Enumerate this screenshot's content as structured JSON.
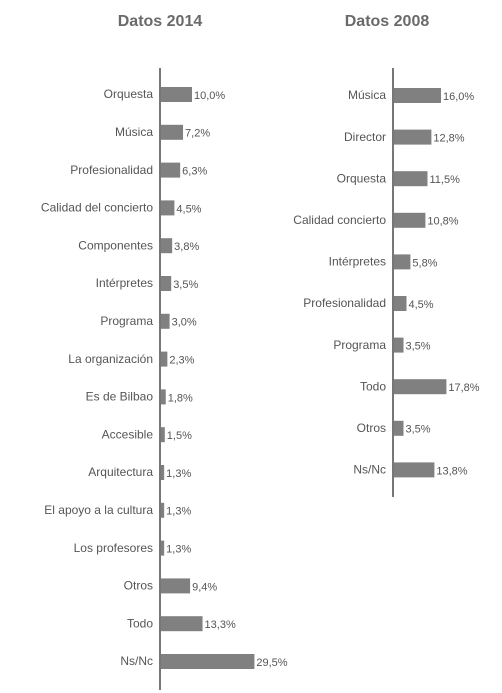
{
  "chart_data": [
    {
      "type": "barh",
      "title": "Datos 2014",
      "color": "#808080",
      "categories": [
        "Orquesta",
        "Música",
        "Profesionalidad",
        "Calidad del concierto",
        "Componentes",
        "Intérpretes",
        "Programa",
        "La organización",
        "Es de Bilbao",
        "Accesible",
        "Arquitectura",
        "El apoyo a la cultura",
        "Los profesores",
        "Otros",
        "Todo",
        "Ns/Nc"
      ],
      "values": [
        10.0,
        7.2,
        6.3,
        4.5,
        3.8,
        3.5,
        3.0,
        2.3,
        1.8,
        1.5,
        1.3,
        1.3,
        1.3,
        9.4,
        13.3,
        29.5
      ],
      "value_labels": [
        "10,0%",
        "7,2%",
        "6,3%",
        "4,5%",
        "3,8%",
        "3,5%",
        "3,0%",
        "2,3%",
        "1,8%",
        "1,5%",
        "1,3%",
        "1,3%",
        "1,3%",
        "9,4%",
        "13,3%",
        "29,5%"
      ]
    },
    {
      "type": "barh",
      "title": "Datos 2008",
      "color": "#808080",
      "categories": [
        "Música",
        "Director",
        "Orquesta",
        "Calidad concierto",
        "Intérpretes",
        "Profesionalidad",
        "Programa",
        "Todo",
        "Otros",
        "Ns/Nc"
      ],
      "values": [
        16.0,
        12.8,
        11.5,
        10.8,
        5.8,
        4.5,
        3.5,
        17.8,
        3.5,
        13.8
      ],
      "value_labels": [
        "16,0%",
        "12,8%",
        "11,5%",
        "10,8%",
        "5,8%",
        "4,5%",
        "3,5%",
        "17,8%",
        "3,5%",
        "13,8%"
      ]
    }
  ]
}
